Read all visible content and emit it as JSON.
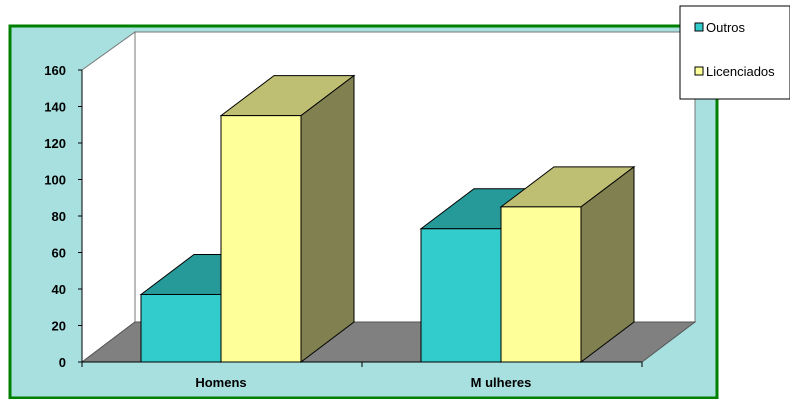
{
  "chart_data": {
    "type": "bar",
    "style": "3d-clustered-column",
    "categories": [
      "Homens",
      "M ulheres"
    ],
    "series": [
      {
        "name": "Outros",
        "values": [
          37,
          73
        ]
      },
      {
        "name": "Licenciados",
        "values": [
          135,
          85
        ]
      }
    ],
    "ylim": [
      0,
      160
    ],
    "yticks": [
      "0",
      "20",
      "40",
      "60",
      "80",
      "100",
      "120",
      "140",
      "160"
    ],
    "grid": false,
    "legend_position": "top-right",
    "colors": {
      "plot_area_bg": "#A8E0E0",
      "plot_border": "#008000",
      "walls": "#FFFFFF",
      "floor": "#808080",
      "floor_side": "#5a5a5a",
      "outros_front": "#33CCCC",
      "outros_top": "#269999",
      "outros_side": "#1f7f7f",
      "licenciados_front": "#FFFF99",
      "licenciados_top": "#BFBF73",
      "licenciados_side": "#808050"
    }
  }
}
